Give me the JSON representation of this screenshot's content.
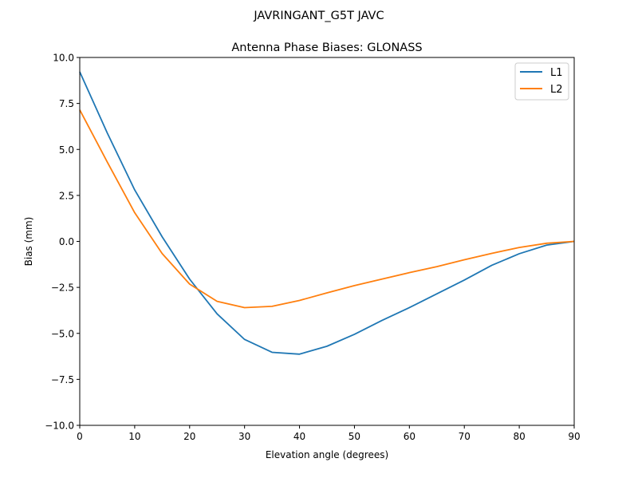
{
  "chart_data": {
    "type": "line",
    "suptitle": "JAVRINGANT_G5T  JAVC",
    "title": "Antenna Phase Biases: GLONASS",
    "xlabel": "Elevation angle (degrees)",
    "ylabel": "Bias (mm)",
    "xlim": [
      0,
      90
    ],
    "ylim": [
      -10,
      10
    ],
    "xticks": [
      "0",
      "10",
      "20",
      "30",
      "40",
      "50",
      "60",
      "70",
      "80",
      "90"
    ],
    "yticks": [
      "−10.0",
      "−7.5",
      "−5.0",
      "−2.5",
      "0.0",
      "2.5",
      "5.0",
      "7.5",
      "10.0"
    ],
    "grid": false,
    "legend_position": "top-right",
    "x": [
      0,
      5,
      10,
      15,
      20,
      25,
      30,
      35,
      40,
      45,
      50,
      55,
      60,
      65,
      70,
      75,
      80,
      85,
      90
    ],
    "series": [
      {
        "name": "L1",
        "color": "#1f77b4",
        "values": [
          9.22,
          5.9,
          2.8,
          0.25,
          -2.05,
          -3.94,
          -5.33,
          -6.03,
          -6.13,
          -5.7,
          -5.05,
          -4.3,
          -3.6,
          -2.85,
          -2.1,
          -1.3,
          -0.67,
          -0.2,
          0.0
        ]
      },
      {
        "name": "L2",
        "color": "#ff7f0e",
        "values": [
          7.15,
          4.32,
          1.56,
          -0.66,
          -2.32,
          -3.26,
          -3.6,
          -3.53,
          -3.21,
          -2.8,
          -2.4,
          -2.05,
          -1.7,
          -1.37,
          -1.0,
          -0.65,
          -0.33,
          -0.1,
          0.0
        ]
      }
    ]
  }
}
